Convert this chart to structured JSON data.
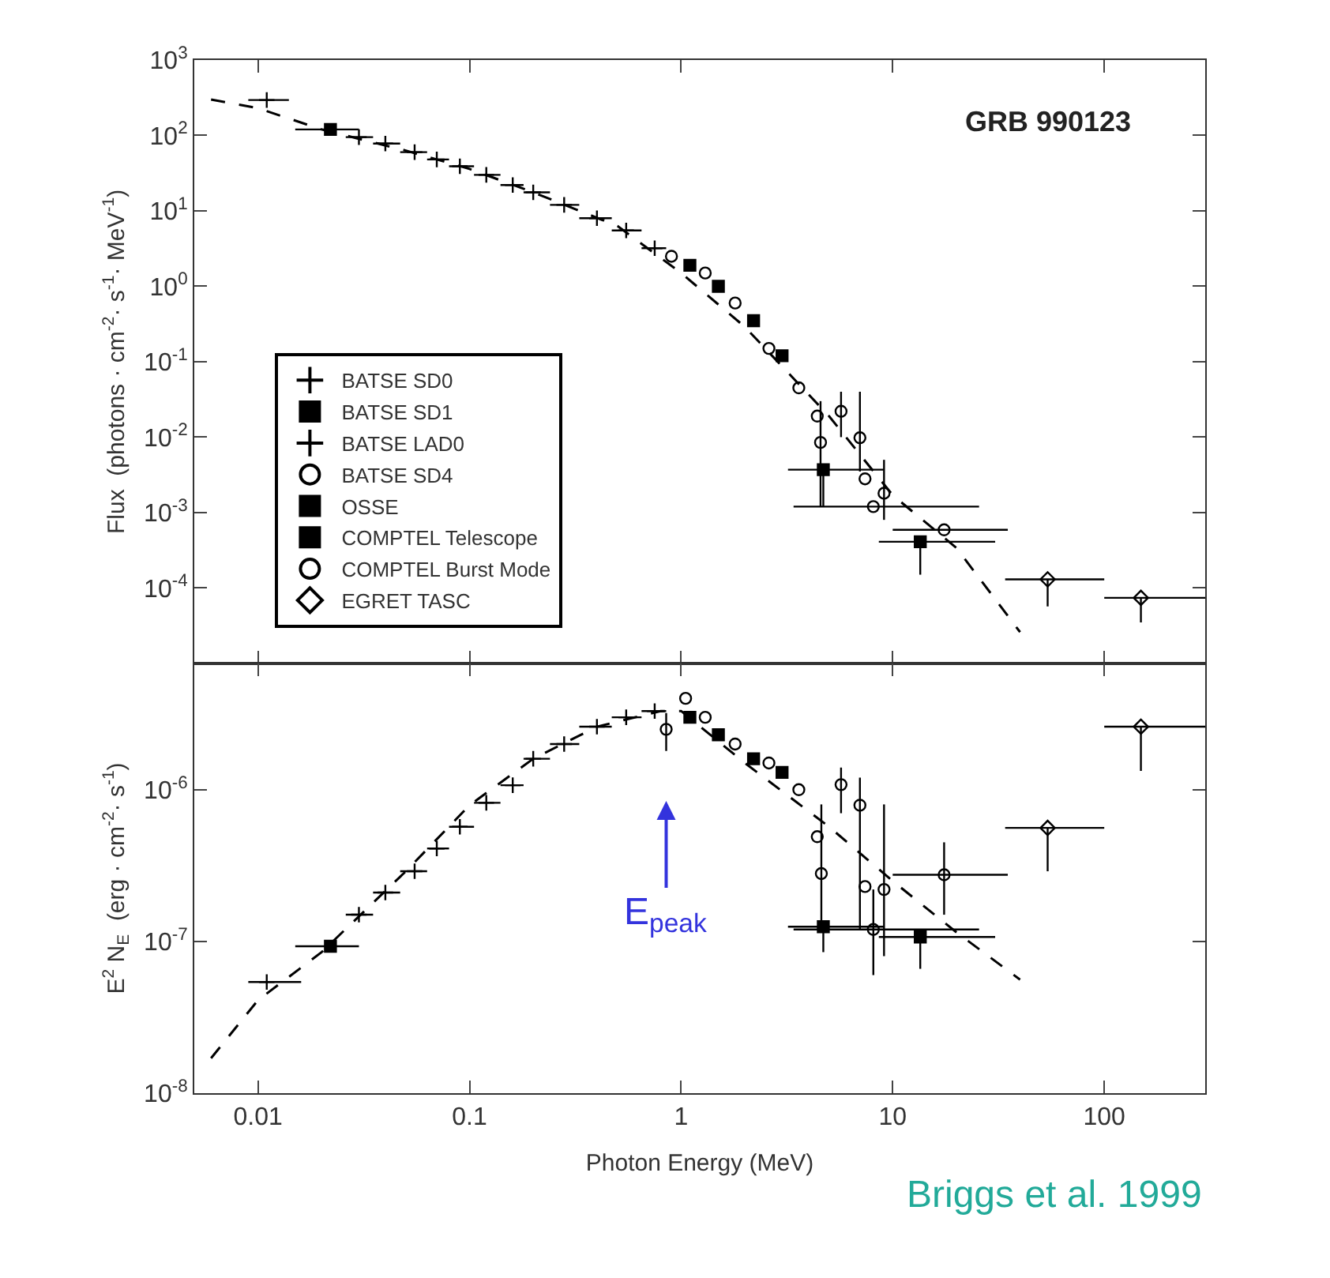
{
  "chart_data": [
    {
      "type": "scatter",
      "ylabel": "Flux  (photons · cm$^{-2}$· s$^{-1}$· MeV$^{-1}$)",
      "log": "xy",
      "xlim": [
        0.005,
        300
      ],
      "xticks": [
        0.01,
        0.1,
        1,
        10,
        100
      ],
      "ylim": [
        1e-05,
        1000
      ],
      "yticks": [
        {
          "value": 0.0001,
          "label": "10$^{-4}$"
        },
        {
          "value": 0.001,
          "label": "10$^{-3}$"
        },
        {
          "value": 0.01,
          "label": "10$^{-2}$"
        },
        {
          "value": 0.1,
          "label": "10$^{-1}$"
        },
        {
          "value": 1,
          "label": "10$^{0}$"
        },
        {
          "value": 10,
          "label": "10$^{1}$"
        },
        {
          "value": 100,
          "label": "10$^{2}$"
        },
        {
          "value": 1000,
          "label": "10$^{3}$"
        }
      ],
      "tick_labels": "y",
      "legend": "bottom left",
      "annotations": [
        "GRB 990123"
      ],
      "series": [
        {
          "type": "line",
          "color": "#000000",
          "line_style": "dashed",
          "marker": "none",
          "x": [
            0.006,
            0.01,
            0.02,
            0.05,
            0.1,
            0.2,
            0.5,
            1,
            2,
            5,
            10,
            20,
            40
          ],
          "values": [
            300,
            230,
            120,
            63,
            36,
            17.6,
            6.3,
            1.5,
            0.29,
            0.019,
            0.0017,
            0.00034,
            2.6e-05
          ]
        },
        {
          "name": "BATSE SD0",
          "color": "#000000",
          "marker": "cross",
          "x": [
            0.011
          ],
          "values": [
            295
          ],
          "xerrors": [
            [
              0.009,
              0.014
            ]
          ]
        },
        {
          "name": "BATSE SD1",
          "color": "#000000",
          "marker": "square",
          "x": [
            0.022
          ],
          "values": [
            120
          ],
          "xerrors": [
            [
              0.015,
              0.03
            ]
          ]
        },
        {
          "name": "BATSE LAD0",
          "color": "#000000",
          "marker": "cross",
          "x": [
            0.03,
            0.04,
            0.055,
            0.07,
            0.09,
            0.12,
            0.16,
            0.2,
            0.28,
            0.4,
            0.55,
            0.75
          ],
          "values": [
            95,
            78,
            60,
            48,
            39,
            30,
            22,
            17.6,
            12,
            8,
            5.5,
            3.2
          ],
          "xerrors": [
            [
              0.026,
              0.035
            ],
            [
              0.035,
              0.047
            ],
            [
              0.047,
              0.063
            ],
            [
              0.063,
              0.08
            ],
            [
              0.08,
              0.105
            ],
            [
              0.105,
              0.14
            ],
            [
              0.14,
              0.18
            ],
            [
              0.18,
              0.24
            ],
            [
              0.24,
              0.33
            ],
            [
              0.33,
              0.47
            ],
            [
              0.47,
              0.65
            ],
            [
              0.65,
              0.85
            ]
          ]
        },
        {
          "name": "BATSE SD4",
          "color": "#000000",
          "marker": "circle",
          "x": [
            0.9,
            1.3,
            1.8,
            2.6,
            3.6,
            4.4,
            7.4,
            8.1,
            17.5
          ],
          "values": [
            2.5,
            1.5,
            0.6,
            0.15,
            0.045,
            0.019,
            0.0028,
            0.0012,
            0.00059
          ],
          "xerrors": [
            null,
            null,
            null,
            null,
            null,
            null,
            null,
            [
              3.4,
              25.6
            ],
            [
              10,
              35
            ]
          ]
        },
        {
          "name": "OSSE",
          "color": "#000000",
          "marker": "square",
          "x": [
            1.1,
            1.5,
            2.2,
            3
          ],
          "values": [
            1.9,
            1.0,
            0.35,
            0.12
          ]
        },
        {
          "name": "COMPTEL Telescope",
          "color": "#000000",
          "marker": "square",
          "x": [
            4.7,
            13.5
          ],
          "values": [
            0.0037,
            0.00041
          ],
          "xerrors": [
            [
              3.2,
              9.1
            ],
            [
              8.6,
              30.5
            ]
          ],
          "errors": [
            [
              0.0012,
              0.0037
            ],
            [
              0.00015,
              0.00041
            ]
          ]
        },
        {
          "name": "COMPTEL Burst Mode",
          "color": "#000000",
          "marker": "circle",
          "x": [
            4.56,
            5.7,
            7.0,
            9.1
          ],
          "values": [
            0.0085,
            0.022,
            0.0098,
            0.0018
          ],
          "errors": [
            [
              0.0012,
              0.03
            ],
            [
              0.01,
              0.04
            ],
            [
              0.0035,
              0.04
            ],
            [
              0.0008,
              0.005
            ]
          ]
        },
        {
          "name": "EGRET TASC",
          "color": "#000000",
          "marker": "diamond",
          "x": [
            54,
            149
          ],
          "values": [
            0.00013,
            7.4e-05
          ],
          "xerrors": [
            [
              34,
              100
            ],
            [
              100,
              300
            ]
          ],
          "errors": [
            [
              5.7e-05,
              0.00013
            ],
            [
              3.5e-05,
              7.4e-05
            ]
          ]
        }
      ]
    },
    {
      "type": "scatter",
      "xlabel": "Photon Energy (MeV)",
      "ylabel": "E$^{2}$ N$_{E}$  (erg · cm$^{-2}$· s$^{-1}$)",
      "log": "xy",
      "xlim": [
        0.005,
        300
      ],
      "xticks": [
        0.01,
        0.1,
        1,
        10,
        100
      ],
      "ylim": [
        1e-08,
        6.8e-06
      ],
      "yticks": [
        {
          "value": 1e-08,
          "label": "10$^{-8}$"
        },
        {
          "value": 1e-07,
          "label": "10$^{-7}$"
        },
        {
          "value": 1e-06,
          "label": "10$^{-6}$"
        }
      ],
      "annotations": [
        "E$_{peak}$",
        "Briggs et al. 1999"
      ],
      "series": [
        {
          "type": "line",
          "color": "#000000",
          "line_style": "dashed",
          "marker": "none",
          "x": [
            0.006,
            0.01,
            0.02,
            0.05,
            0.1,
            0.2,
            0.4,
            0.8,
            1,
            2,
            5,
            10,
            20,
            40
          ],
          "values": [
            1.7e-08,
            4.1e-08,
            8.5e-08,
            2.9e-07,
            7.9e-07,
            1.6e-06,
            2.6e-06,
            3.3e-06,
            3.3e-06,
            1.5e-06,
            5.7e-07,
            2.5e-07,
            1.15e-07,
            5.6e-08
          ]
        },
        {
          "color": "#000000",
          "marker": "cross",
          "x": [
            0.011
          ],
          "values": [
            5.4e-08
          ],
          "xerrors": [
            [
              0.009,
              0.016
            ]
          ]
        },
        {
          "color": "#000000",
          "marker": "square",
          "x": [
            0.022
          ],
          "values": [
            9.3e-08
          ],
          "xerrors": [
            [
              0.015,
              0.03
            ]
          ]
        },
        {
          "color": "#000000",
          "marker": "cross",
          "x": [
            0.03,
            0.04,
            0.055,
            0.07,
            0.09,
            0.12,
            0.16,
            0.2,
            0.28,
            0.4,
            0.55,
            0.75
          ],
          "values": [
            1.5e-07,
            2.1e-07,
            2.9e-07,
            4.1e-07,
            5.7e-07,
            8.2e-07,
            1.07e-06,
            1.6e-06,
            2e-06,
            2.6e-06,
            3e-06,
            3.3e-06
          ],
          "xerrors": [
            [
              0.026,
              0.035
            ],
            [
              0.035,
              0.047
            ],
            [
              0.047,
              0.063
            ],
            [
              0.063,
              0.08
            ],
            [
              0.08,
              0.105
            ],
            [
              0.105,
              0.14
            ],
            [
              0.14,
              0.18
            ],
            [
              0.18,
              0.24
            ],
            [
              0.24,
              0.33
            ],
            [
              0.33,
              0.47
            ],
            [
              0.47,
              0.65
            ],
            [
              0.65,
              0.85
            ]
          ]
        },
        {
          "color": "#000000",
          "marker": "circle",
          "x": [
            0.85,
            1.05,
            1.3,
            1.8,
            2.6,
            3.6,
            4.4,
            7.4,
            8.1,
            17.5
          ],
          "values": [
            2.5e-06,
            4e-06,
            3e-06,
            2e-06,
            1.5e-06,
            1e-06,
            4.9e-07,
            2.3e-07,
            1.2e-07,
            2.75e-07
          ],
          "errors": [
            [
              1.8e-06,
              3.2e-06
            ],
            null,
            null,
            null,
            null,
            null,
            null,
            null,
            [
              6e-08,
              2.2e-07
            ],
            [
              1.5e-07,
              4.5e-07
            ]
          ],
          "xerrors": [
            null,
            null,
            null,
            null,
            null,
            null,
            null,
            null,
            [
              3.4,
              25.6
            ],
            [
              10,
              35
            ]
          ]
        },
        {
          "color": "#000000",
          "marker": "square",
          "x": [
            1.1,
            1.5,
            2.2,
            3
          ],
          "values": [
            3e-06,
            2.3e-06,
            1.6e-06,
            1.3e-06
          ]
        },
        {
          "color": "#000000",
          "marker": "square",
          "x": [
            4.7,
            13.5
          ],
          "values": [
            1.25e-07,
            1.07e-07
          ],
          "xerrors": [
            [
              3.2,
              9.1
            ],
            [
              8.6,
              30.5
            ]
          ],
          "errors": [
            [
              8.5e-08,
              1.25e-07
            ],
            [
              6.6e-08,
              1.07e-07
            ]
          ]
        },
        {
          "color": "#000000",
          "marker": "circle",
          "x": [
            4.6,
            5.7,
            7.0,
            9.1
          ],
          "values": [
            2.8e-07,
            1.08e-06,
            7.9e-07,
            2.2e-07
          ],
          "errors": [
            [
              1.2e-07,
              8e-07
            ],
            [
              7e-07,
              1.4e-06
            ],
            [
              1.2e-07,
              1.2e-06
            ],
            [
              8e-08,
              8e-07
            ]
          ]
        },
        {
          "color": "#000000",
          "marker": "diamond",
          "x": [
            54,
            149
          ],
          "values": [
            5.6e-07,
            2.6e-06
          ],
          "xerrors": [
            [
              34,
              100
            ],
            [
              100,
              300
            ]
          ],
          "errors": [
            [
              2.9e-07,
              5.6e-07
            ],
            [
              1.33e-06,
              2.6e-06
            ]
          ]
        }
      ]
    }
  ]
}
